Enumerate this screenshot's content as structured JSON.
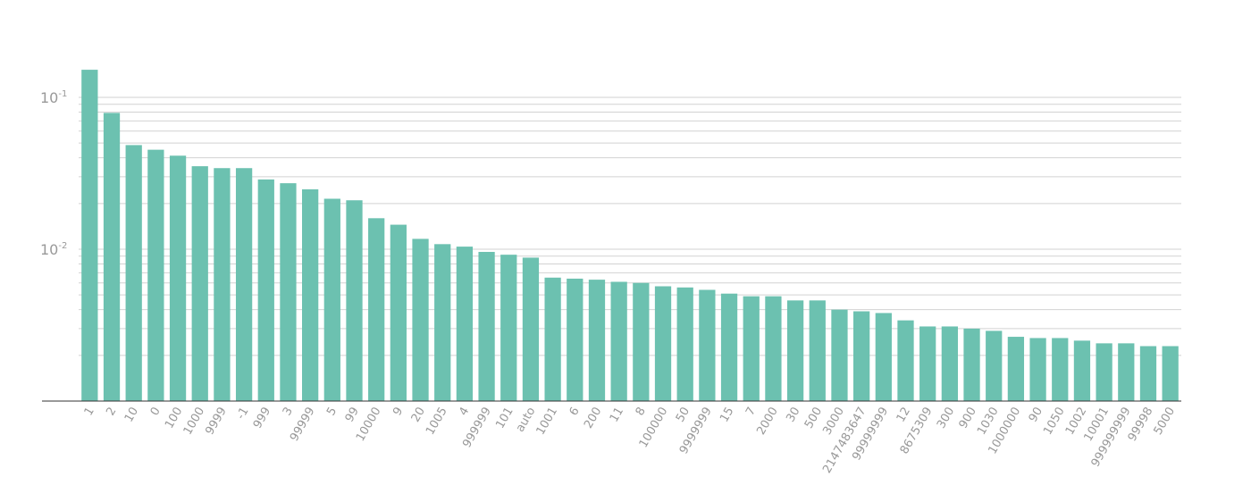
{
  "chart_data": {
    "type": "bar",
    "title": "",
    "xlabel": "",
    "ylabel": "",
    "y_scale": "log",
    "ylim": [
      0.001,
      0.16
    ],
    "grid": true,
    "legend": "none",
    "y_ticks": [
      {
        "base": "10",
        "exp": "-1",
        "value": 0.1
      },
      {
        "base": "10",
        "exp": "-2",
        "value": 0.01
      }
    ],
    "bar_color": "#6cc1b0",
    "categories": [
      "1",
      "2",
      "10",
      "0",
      "100",
      "1000",
      "9999",
      "-1",
      "999",
      "3",
      "99999",
      "5",
      "99",
      "10000",
      "9",
      "20",
      "1005",
      "4",
      "999999",
      "101",
      "auto",
      "1001",
      "6",
      "200",
      "11",
      "8",
      "100000",
      "50",
      "9999999",
      "15",
      "7",
      "2000",
      "30",
      "500",
      "3000",
      "2147483647",
      "99999999",
      "12",
      "8675309",
      "300",
      "900",
      "1030",
      "1000000",
      "90",
      "1050",
      "1002",
      "10001",
      "999999999",
      "99998",
      "5000"
    ],
    "values": [
      0.152,
      0.079,
      0.0485,
      0.0452,
      0.0413,
      0.0352,
      0.0342,
      0.0342,
      0.0288,
      0.0272,
      0.0248,
      0.0215,
      0.021,
      0.016,
      0.0145,
      0.0117,
      0.0108,
      0.0104,
      0.0096,
      0.0092,
      0.0088,
      0.0065,
      0.0064,
      0.0063,
      0.0061,
      0.006,
      0.0057,
      0.0056,
      0.0054,
      0.0051,
      0.0049,
      0.0049,
      0.0046,
      0.0046,
      0.004,
      0.0039,
      0.0038,
      0.0034,
      0.0031,
      0.0031,
      0.003,
      0.0029,
      0.00265,
      0.0026,
      0.0026,
      0.0025,
      0.0024,
      0.0024,
      0.0023,
      0.0023
    ]
  }
}
